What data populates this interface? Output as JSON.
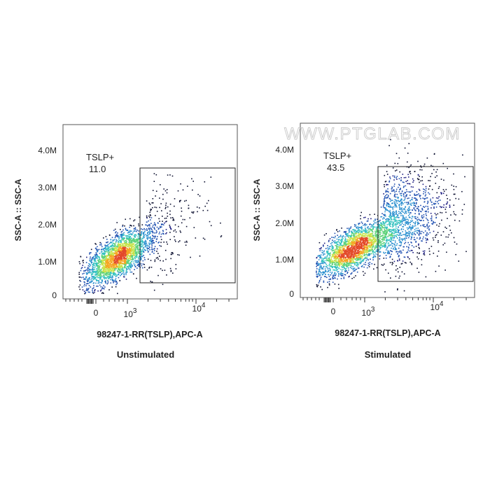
{
  "watermark": "WWW.PTGLAB.COM",
  "colors": {
    "density": [
      "#1b1b80",
      "#1f4fb0",
      "#2a8fcf",
      "#35c2c0",
      "#5fd27a",
      "#c8e34a",
      "#f5a623",
      "#e34a2a"
    ],
    "sparse": "#0c1030"
  },
  "chart_data": [
    {
      "type": "scatter",
      "subtype": "flow-cytometry-density-plot",
      "title": "Unstimulated",
      "xlabel": "98247-1-RR(TSLP),APC-A",
      "ylabel": "SSC-A :: SSC-A",
      "x_scale": "biexponential",
      "x_tick_labels": [
        "0",
        "10^3",
        "10^4"
      ],
      "y_tick_labels": [
        "0",
        "1.0M",
        "2.0M",
        "3.0M",
        "4.0M"
      ],
      "ylim": [
        0,
        4500000
      ],
      "gate": {
        "label": "TSLP+",
        "percent": "11.0"
      },
      "population": {
        "center_y": 1100000
      }
    },
    {
      "type": "scatter",
      "subtype": "flow-cytometry-density-plot",
      "title": "Stimulated",
      "xlabel": "98247-1-RR(TSLP),APC-A",
      "ylabel": "SSC-A :: SSC-A",
      "x_scale": "biexponential",
      "x_tick_labels": [
        "0",
        "10^3",
        "10^4"
      ],
      "y_tick_labels": [
        "0",
        "1.0M",
        "2.0M",
        "3.0M",
        "4.0M"
      ],
      "ylim": [
        0,
        4500000
      ],
      "gate": {
        "label": "TSLP+",
        "percent": "43.5"
      },
      "population": {
        "center_y": 1300000
      }
    }
  ]
}
